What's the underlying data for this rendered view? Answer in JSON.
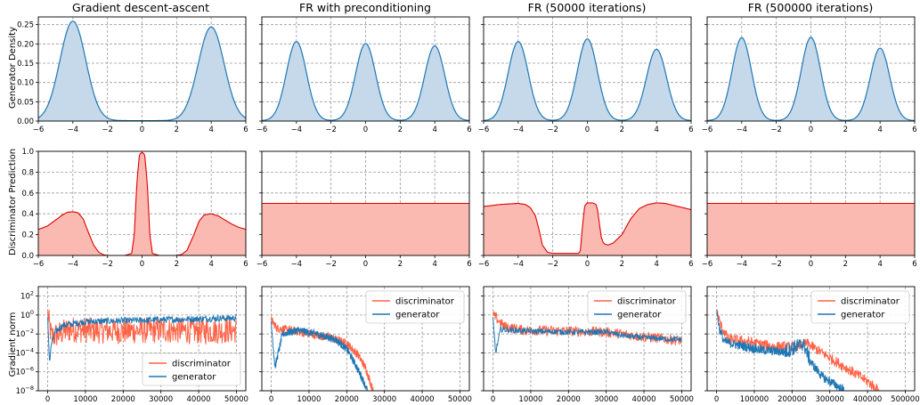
{
  "colors": {
    "density_line": "#1f77b4",
    "density_fill": "#c5d9ea",
    "disc_line": "#dd0000",
    "disc_fill": "#fbbab1",
    "disc_norm": "#ff6347",
    "gen_norm": "#1f77b4"
  },
  "panel_titles": [
    "Gradient descent-ascent",
    "FR with preconditioning",
    "FR (50000 iterations)",
    "FR (500000 iterations)"
  ],
  "row_ylabels": [
    "Generator Density",
    "Discriminator Prediction",
    "Gradient norm"
  ],
  "legend_labels": [
    "discriminator",
    "generator"
  ],
  "legend_placement": [
    "lower-right",
    "upper-right",
    "upper-right",
    "upper-right"
  ],
  "chart_data": [
    {
      "row": "generator-density",
      "type": "area",
      "xlim": [
        -6,
        6
      ],
      "ylim": [
        0,
        0.27
      ],
      "xticks": [
        -6,
        -4,
        -2,
        0,
        2,
        4,
        6
      ],
      "yticks": [
        0.0,
        0.05,
        0.1,
        0.15,
        0.2,
        0.25
      ],
      "ytick_labels": [
        "0.00",
        "0.05",
        "0.10",
        "0.15",
        "0.20",
        "0.25"
      ],
      "grid": true,
      "panels": [
        {
          "title": "Gradient descent-ascent",
          "modes": [
            {
              "mu": -4,
              "peak": 0.258
            },
            {
              "mu": 4,
              "peak": 0.243
            }
          ],
          "sigma": 0.75
        },
        {
          "title": "FR with preconditioning",
          "modes": [
            {
              "mu": -4,
              "peak": 0.205
            },
            {
              "mu": 0,
              "peak": 0.2
            },
            {
              "mu": 4,
              "peak": 0.194
            }
          ],
          "sigma": 0.58
        },
        {
          "title": "FR (50000 iterations)",
          "modes": [
            {
              "mu": -4,
              "peak": 0.205
            },
            {
              "mu": 0,
              "peak": 0.212
            },
            {
              "mu": 4,
              "peak": 0.185
            }
          ],
          "sigma": 0.58
        },
        {
          "title": "FR (500000 iterations)",
          "modes": [
            {
              "mu": -4,
              "peak": 0.215
            },
            {
              "mu": 0,
              "peak": 0.216
            },
            {
              "mu": 4,
              "peak": 0.188
            }
          ],
          "sigma": 0.56
        }
      ]
    },
    {
      "row": "discriminator-prediction",
      "type": "area",
      "xlim": [
        -6,
        6
      ],
      "ylim": [
        0,
        1.0
      ],
      "xticks": [
        -6,
        -4,
        -2,
        0,
        2,
        4,
        6
      ],
      "yticks": [
        0.0,
        0.2,
        0.4,
        0.6,
        0.8,
        1.0
      ],
      "ytick_labels": [
        "0.0",
        "0.2",
        "0.4",
        "0.6",
        "0.8",
        "1.0"
      ],
      "grid": true,
      "panels": [
        {
          "x": [
            -6,
            -5.5,
            -5,
            -4.6,
            -4.3,
            -4,
            -3.7,
            -3.4,
            -3.1,
            -2.8,
            -2.5,
            -2.2,
            -2,
            -1.5,
            -1,
            -0.6,
            -0.45,
            -0.3,
            -0.15,
            0,
            0.15,
            0.3,
            0.45,
            0.6,
            1,
            1.5,
            2,
            2.3,
            2.6,
            3,
            3.3,
            3.6,
            4,
            4.4,
            4.8,
            5.2,
            5.6,
            6
          ],
          "y": [
            0.25,
            0.28,
            0.34,
            0.39,
            0.415,
            0.42,
            0.41,
            0.35,
            0.22,
            0.1,
            0.03,
            0.005,
            0.0,
            0.0,
            0.0,
            0.02,
            0.2,
            0.7,
            0.97,
            0.99,
            0.97,
            0.7,
            0.2,
            0.02,
            0.0,
            0.0,
            0.0,
            0.01,
            0.05,
            0.2,
            0.33,
            0.39,
            0.4,
            0.38,
            0.34,
            0.3,
            0.27,
            0.25
          ]
        },
        {
          "x": [
            -6,
            6
          ],
          "y": [
            0.5,
            0.5
          ]
        },
        {
          "x": [
            -6,
            -5,
            -4,
            -3.6,
            -3.3,
            -3,
            -2.8,
            -2.6,
            -2.3,
            -2,
            -1.5,
            -1,
            -0.5,
            -0.4,
            -0.3,
            -0.15,
            0,
            0.3,
            0.5,
            0.6,
            0.7,
            0.8,
            0.9,
            1,
            1.2,
            1.5,
            2,
            2.5,
            3,
            3.5,
            4,
            4.5,
            5,
            5.5,
            6
          ],
          "y": [
            0.47,
            0.49,
            0.5,
            0.49,
            0.46,
            0.38,
            0.25,
            0.1,
            0.03,
            0.02,
            0.02,
            0.02,
            0.02,
            0.05,
            0.25,
            0.48,
            0.505,
            0.505,
            0.49,
            0.43,
            0.3,
            0.18,
            0.13,
            0.11,
            0.1,
            0.12,
            0.2,
            0.35,
            0.45,
            0.49,
            0.505,
            0.5,
            0.48,
            0.46,
            0.44
          ]
        },
        {
          "x": [
            -6,
            6
          ],
          "y": [
            0.5,
            0.5
          ]
        }
      ]
    },
    {
      "row": "gradient-norm",
      "type": "line",
      "xlim": [
        -2500,
        52500
      ],
      "ylog": true,
      "ylim": [
        1e-08,
        1000.0
      ],
      "xticks": [
        0,
        10000,
        20000,
        30000,
        40000,
        50000
      ],
      "xlims_by_panel": [
        [
          -2500,
          52500
        ],
        [
          -2500,
          52500
        ],
        [
          -2500,
          52500
        ],
        [
          -25000,
          525000
        ]
      ],
      "xticks_by_panel": [
        [
          0,
          10000,
          20000,
          30000,
          40000,
          50000
        ],
        [
          0,
          10000,
          20000,
          30000,
          40000,
          50000
        ],
        [
          0,
          10000,
          20000,
          30000,
          40000,
          50000
        ],
        [
          0,
          100000,
          200000,
          300000,
          400000,
          500000
        ]
      ],
      "yticks_exp": [
        -8,
        -6,
        -4,
        -2,
        0,
        2
      ],
      "grid": true,
      "series_names": [
        "discriminator",
        "generator"
      ],
      "panels": [
        {
          "iterations": 50000,
          "discriminator": {
            "x": [
              0,
              1000,
              3000,
              6000,
              10000,
              20000,
              30000,
              40000,
              50000
            ],
            "log10": [
              0.0,
              -2.3,
              -2.0,
              -1.5,
              -1.6,
              -1.7,
              -1.6,
              -1.7,
              -1.6
            ],
            "noise": 1.4
          },
          "generator": {
            "x": [
              0,
              500,
              1000,
              2000,
              4000,
              7000,
              10000,
              20000,
              30000,
              40000,
              50000
            ],
            "log10": [
              -0.5,
              -5.0,
              -3.0,
              -1.8,
              -1.1,
              -0.9,
              -0.7,
              -0.6,
              -0.5,
              -0.4,
              -0.3
            ],
            "noise": 0.35
          }
        },
        {
          "iterations": 50000,
          "discriminator": {
            "x": [
              0,
              1500,
              5000,
              10000,
              15000,
              20000,
              23000,
              25000,
              27000
            ],
            "log10": [
              -0.5,
              -1.4,
              -1.6,
              -2.0,
              -2.3,
              -3.0,
              -4.2,
              -5.6,
              -8.0
            ],
            "noise": 0.45
          },
          "generator": {
            "x": [
              0,
              1000,
              3000,
              7000,
              12000,
              17000,
              20000,
              22000,
              24000,
              25500
            ],
            "log10": [
              -1.0,
              -5.5,
              -2.0,
              -1.6,
              -2.0,
              -2.6,
              -3.6,
              -5.0,
              -6.6,
              -8.0
            ],
            "noise": 0.4
          }
        },
        {
          "iterations": 50000,
          "discriminator": {
            "x": [
              0,
              3000,
              8000,
              20000,
              30000,
              34000,
              40000,
              45000,
              50000
            ],
            "log10": [
              0.0,
              -1.2,
              -1.6,
              -1.7,
              -1.8,
              -2.0,
              -2.3,
              -2.5,
              -2.7
            ],
            "noise": 0.55
          },
          "generator": {
            "x": [
              0,
              700,
              2000,
              5000,
              10000,
              20000,
              30000,
              35000,
              40000,
              50000
            ],
            "log10": [
              -0.5,
              -4.0,
              -1.5,
              -1.6,
              -1.7,
              -1.8,
              -1.8,
              -2.2,
              -2.4,
              -2.6
            ],
            "noise": 0.3
          }
        },
        {
          "iterations": 500000,
          "discriminator": {
            "x": [
              0,
              10000,
              30000,
              80000,
              150000,
              200000,
              240000,
              300000,
              360000,
              400000,
              430000
            ],
            "log10": [
              0.5,
              -1.0,
              -2.5,
              -2.8,
              -3.3,
              -3.4,
              -3.0,
              -4.5,
              -6.0,
              -7.0,
              -8.0
            ],
            "noise": 0.55
          },
          "generator": {
            "x": [
              0,
              8000,
              20000,
              60000,
              120000,
              180000,
              230000,
              250000,
              280000,
              320000,
              340000
            ],
            "log10": [
              0.5,
              -1.5,
              -2.8,
              -3.2,
              -3.7,
              -3.9,
              -3.0,
              -5.0,
              -6.5,
              -7.5,
              -8.0
            ],
            "noise": 0.5
          }
        }
      ]
    }
  ]
}
